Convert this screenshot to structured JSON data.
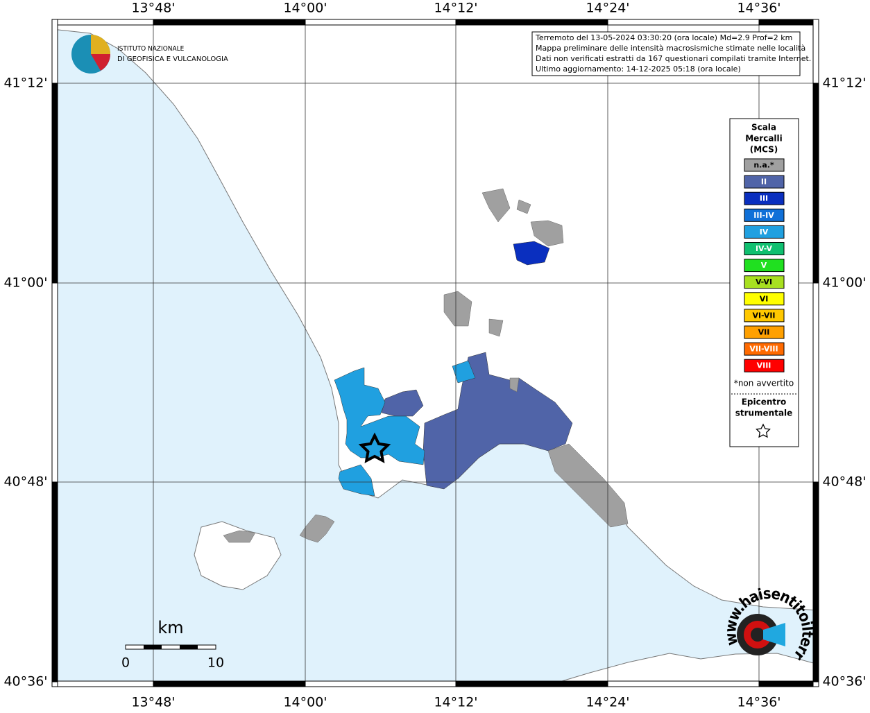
{
  "map": {
    "lon_labels": [
      "13°48'",
      "14°00'",
      "14°12'",
      "14°24'",
      "14°36'"
    ],
    "lat_labels": [
      "41°12'",
      "41°00'",
      "40°48'",
      "40°36'"
    ],
    "info": [
      "Terremoto del 13-05-2024 03:30:20 (ora locale) Md=2.9 Prof=2 km",
      "Mappa preliminare delle intensità macrosismiche stimate nelle località",
      "Dati non verificati estratti da 167 questionari compilati tramite Internet.",
      "Ultimo aggiornamento: 14-12-2025 05:18 (ora locale)"
    ],
    "institute": [
      "ISTITUTO NAZIONALE",
      "DI GEOFISICA E VULCANOLOGIA"
    ],
    "scale_bar": {
      "unit": "km",
      "ticks": [
        0,
        10
      ]
    },
    "site_logo": "www.haisentitoilterremoto.it"
  },
  "legend": {
    "title": [
      "Scala",
      "Mercalli",
      "(MCS)"
    ],
    "items": [
      {
        "label": "n.a.*",
        "color": "#a0a0a0"
      },
      {
        "label": "II",
        "color": "#5064a8"
      },
      {
        "label": "III",
        "color": "#0a2fbf"
      },
      {
        "label": "III-IV",
        "color": "#1070d8"
      },
      {
        "label": "IV",
        "color": "#20a0e0"
      },
      {
        "label": "IV-V",
        "color": "#10c070"
      },
      {
        "label": "V",
        "color": "#20e020"
      },
      {
        "label": "V-VI",
        "color": "#a8e020"
      },
      {
        "label": "VI",
        "color": "#ffff00"
      },
      {
        "label": "VI-VII",
        "color": "#ffc800"
      },
      {
        "label": "VII",
        "color": "#ffa000"
      },
      {
        "label": "VII-VIII",
        "color": "#ff6a00"
      },
      {
        "label": "VIII",
        "color": "#ff0000"
      }
    ],
    "note": "*non avvertito",
    "epicenter": [
      "Epicentro",
      "strumentale"
    ]
  }
}
